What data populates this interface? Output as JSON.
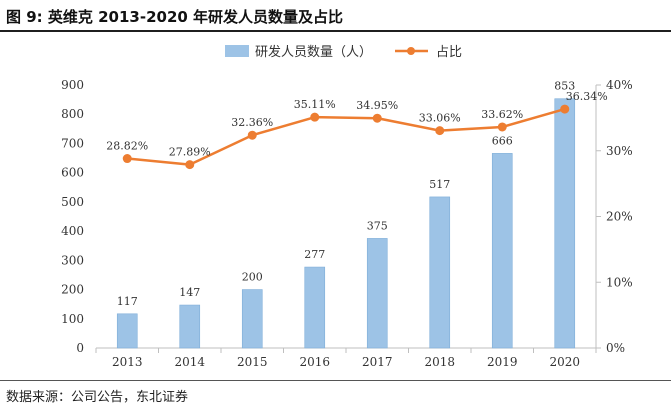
{
  "figure": {
    "title": "图 9:  英维克 2013-2020 年研发人员数量及占比",
    "source": "数据来源：公司公告，东北证券"
  },
  "colors": {
    "bar": "#9DC3E6",
    "bar_stroke": "#7FAED8",
    "line": "#ED7D31",
    "axis": "#bfbfbf",
    "text": "#333333"
  },
  "chart_data": {
    "type": "bar",
    "title": "英维克 2013-2020 年研发人员数量及占比",
    "categories": [
      "2013",
      "2014",
      "2015",
      "2016",
      "2017",
      "2018",
      "2019",
      "2020"
    ],
    "series": [
      {
        "name": "研发人员数量（人）",
        "type": "bar",
        "axis": "left",
        "values": [
          117,
          147,
          200,
          277,
          375,
          517,
          666,
          853
        ],
        "labels": [
          "117",
          "147",
          "200",
          "277",
          "375",
          "517",
          "666",
          "853"
        ]
      },
      {
        "name": "占比",
        "type": "line",
        "axis": "right",
        "values": [
          28.82,
          27.89,
          32.36,
          35.11,
          34.95,
          33.06,
          33.62,
          36.34
        ],
        "labels": [
          "28.82%",
          "27.89%",
          "32.36%",
          "35.11%",
          "34.95%",
          "33.06%",
          "33.62%",
          "36.34%"
        ]
      }
    ],
    "y_left": {
      "min": 0,
      "max": 900,
      "ticks": [
        "0",
        "100",
        "200",
        "300",
        "400",
        "500",
        "600",
        "700",
        "800",
        "900"
      ]
    },
    "y_right": {
      "min": 0,
      "max": 40,
      "ticks": [
        "0%",
        "10%",
        "20%",
        "30%",
        "40%"
      ]
    },
    "legend_position": "top-center",
    "grid": false
  }
}
